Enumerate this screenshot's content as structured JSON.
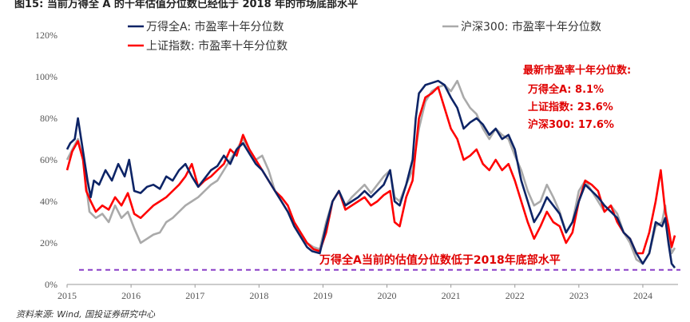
{
  "header": {
    "title": "图15: 当前万得全 A 的十年估值分位数已经低于 2018 年的市场底部水平"
  },
  "footer": {
    "source": "资料来源: Wind, 国投证券研究中心"
  },
  "colors": {
    "wind_a": "#0d2466",
    "hs300": "#aaaaaa",
    "sse": "#ff0000",
    "baseline": "#8a3fc7",
    "annotation": "#e00000"
  },
  "annotation": {
    "heading": "最新市盈率十年分位数:",
    "lines": [
      "万得全A: 8.1%",
      "上证指数: 23.6%",
      "沪深300: 17.6%"
    ]
  },
  "baseline_label": "万得全A当前的估值分位数低于2018年底部水平",
  "chart_data": {
    "type": "line",
    "title": "",
    "xlabel": "",
    "ylabel": "",
    "x_ticks": [
      "2015",
      "2016",
      "2017",
      "2018",
      "2019",
      "2020",
      "2021",
      "2022",
      "2023",
      "2024"
    ],
    "y_ticks": [
      "0%",
      "20%",
      "40%",
      "60%",
      "80%",
      "100%",
      "120%"
    ],
    "xlim": [
      2015.0,
      2024.55
    ],
    "ylim": [
      0,
      120
    ],
    "grid": false,
    "legend_position": "top",
    "baseline_value": 7,
    "series": [
      {
        "name": "万得全A: 市盈率十年分位数",
        "color": "#0d2466",
        "points": [
          [
            2015.0,
            65
          ],
          [
            2015.05,
            68
          ],
          [
            2015.12,
            70
          ],
          [
            2015.17,
            80
          ],
          [
            2015.22,
            70
          ],
          [
            2015.27,
            60
          ],
          [
            2015.32,
            50
          ],
          [
            2015.37,
            42
          ],
          [
            2015.42,
            50
          ],
          [
            2015.5,
            48
          ],
          [
            2015.6,
            55
          ],
          [
            2015.7,
            50
          ],
          [
            2015.8,
            58
          ],
          [
            2015.9,
            52
          ],
          [
            2015.97,
            60
          ],
          [
            2016.05,
            45
          ],
          [
            2016.15,
            44
          ],
          [
            2016.25,
            47
          ],
          [
            2016.35,
            48
          ],
          [
            2016.45,
            46
          ],
          [
            2016.55,
            52
          ],
          [
            2016.65,
            50
          ],
          [
            2016.75,
            55
          ],
          [
            2016.85,
            58
          ],
          [
            2016.95,
            52
          ],
          [
            2017.05,
            47
          ],
          [
            2017.15,
            51
          ],
          [
            2017.25,
            55
          ],
          [
            2017.35,
            57
          ],
          [
            2017.45,
            62
          ],
          [
            2017.55,
            58
          ],
          [
            2017.65,
            65
          ],
          [
            2017.75,
            68
          ],
          [
            2017.85,
            63
          ],
          [
            2017.95,
            58
          ],
          [
            2018.05,
            55
          ],
          [
            2018.15,
            50
          ],
          [
            2018.25,
            45
          ],
          [
            2018.35,
            40
          ],
          [
            2018.45,
            35
          ],
          [
            2018.55,
            28
          ],
          [
            2018.65,
            23
          ],
          [
            2018.75,
            18
          ],
          [
            2018.83,
            16
          ],
          [
            2018.95,
            15
          ],
          [
            2019.05,
            28
          ],
          [
            2019.15,
            40
          ],
          [
            2019.25,
            45
          ],
          [
            2019.35,
            38
          ],
          [
            2019.45,
            40
          ],
          [
            2019.55,
            42
          ],
          [
            2019.65,
            45
          ],
          [
            2019.75,
            42
          ],
          [
            2019.85,
            45
          ],
          [
            2019.95,
            48
          ],
          [
            2020.05,
            55
          ],
          [
            2020.12,
            40
          ],
          [
            2020.2,
            38
          ],
          [
            2020.3,
            48
          ],
          [
            2020.4,
            60
          ],
          [
            2020.45,
            80
          ],
          [
            2020.5,
            92
          ],
          [
            2020.6,
            96
          ],
          [
            2020.7,
            97
          ],
          [
            2020.8,
            98
          ],
          [
            2020.9,
            96
          ],
          [
            2021.0,
            90
          ],
          [
            2021.1,
            85
          ],
          [
            2021.2,
            75
          ],
          [
            2021.3,
            78
          ],
          [
            2021.4,
            80
          ],
          [
            2021.5,
            77
          ],
          [
            2021.6,
            72
          ],
          [
            2021.7,
            75
          ],
          [
            2021.8,
            70
          ],
          [
            2021.9,
            72
          ],
          [
            2022.0,
            65
          ],
          [
            2022.1,
            50
          ],
          [
            2022.2,
            40
          ],
          [
            2022.3,
            30
          ],
          [
            2022.4,
            35
          ],
          [
            2022.5,
            42
          ],
          [
            2022.6,
            38
          ],
          [
            2022.7,
            34
          ],
          [
            2022.8,
            25
          ],
          [
            2022.9,
            30
          ],
          [
            2023.0,
            40
          ],
          [
            2023.1,
            48
          ],
          [
            2023.2,
            45
          ],
          [
            2023.3,
            42
          ],
          [
            2023.4,
            38
          ],
          [
            2023.5,
            35
          ],
          [
            2023.6,
            32
          ],
          [
            2023.7,
            25
          ],
          [
            2023.8,
            22
          ],
          [
            2023.9,
            15
          ],
          [
            2024.0,
            10
          ],
          [
            2024.1,
            15
          ],
          [
            2024.2,
            30
          ],
          [
            2024.3,
            28
          ],
          [
            2024.35,
            32
          ],
          [
            2024.4,
            20
          ],
          [
            2024.45,
            10
          ],
          [
            2024.5,
            8
          ]
        ]
      },
      {
        "name": "沪深300: 市盈率十年分位数",
        "color": "#aaaaaa",
        "points": [
          [
            2015.0,
            60
          ],
          [
            2015.1,
            66
          ],
          [
            2015.17,
            70
          ],
          [
            2015.25,
            60
          ],
          [
            2015.35,
            35
          ],
          [
            2015.45,
            32
          ],
          [
            2015.55,
            34
          ],
          [
            2015.65,
            30
          ],
          [
            2015.75,
            38
          ],
          [
            2015.85,
            32
          ],
          [
            2015.95,
            35
          ],
          [
            2016.05,
            27
          ],
          [
            2016.15,
            20
          ],
          [
            2016.25,
            22
          ],
          [
            2016.35,
            24
          ],
          [
            2016.45,
            25
          ],
          [
            2016.55,
            30
          ],
          [
            2016.65,
            32
          ],
          [
            2016.75,
            35
          ],
          [
            2016.85,
            38
          ],
          [
            2016.95,
            40
          ],
          [
            2017.05,
            42
          ],
          [
            2017.15,
            45
          ],
          [
            2017.25,
            48
          ],
          [
            2017.35,
            50
          ],
          [
            2017.45,
            55
          ],
          [
            2017.55,
            60
          ],
          [
            2017.65,
            65
          ],
          [
            2017.75,
            70
          ],
          [
            2017.85,
            65
          ],
          [
            2017.95,
            60
          ],
          [
            2018.05,
            62
          ],
          [
            2018.15,
            55
          ],
          [
            2018.25,
            45
          ],
          [
            2018.35,
            40
          ],
          [
            2018.45,
            35
          ],
          [
            2018.55,
            30
          ],
          [
            2018.65,
            25
          ],
          [
            2018.75,
            20
          ],
          [
            2018.85,
            18
          ],
          [
            2018.95,
            17
          ],
          [
            2019.05,
            30
          ],
          [
            2019.15,
            40
          ],
          [
            2019.25,
            45
          ],
          [
            2019.35,
            38
          ],
          [
            2019.45,
            42
          ],
          [
            2019.55,
            45
          ],
          [
            2019.65,
            48
          ],
          [
            2019.75,
            44
          ],
          [
            2019.85,
            48
          ],
          [
            2019.95,
            52
          ],
          [
            2020.05,
            55
          ],
          [
            2020.12,
            42
          ],
          [
            2020.2,
            40
          ],
          [
            2020.3,
            48
          ],
          [
            2020.4,
            55
          ],
          [
            2020.5,
            75
          ],
          [
            2020.6,
            88
          ],
          [
            2020.7,
            93
          ],
          [
            2020.8,
            95
          ],
          [
            2020.9,
            96
          ],
          [
            2021.0,
            93
          ],
          [
            2021.1,
            98
          ],
          [
            2021.2,
            90
          ],
          [
            2021.3,
            85
          ],
          [
            2021.4,
            82
          ],
          [
            2021.5,
            75
          ],
          [
            2021.6,
            70
          ],
          [
            2021.7,
            75
          ],
          [
            2021.8,
            72
          ],
          [
            2021.9,
            70
          ],
          [
            2022.0,
            62
          ],
          [
            2022.1,
            55
          ],
          [
            2022.2,
            45
          ],
          [
            2022.3,
            38
          ],
          [
            2022.4,
            40
          ],
          [
            2022.5,
            48
          ],
          [
            2022.6,
            42
          ],
          [
            2022.7,
            35
          ],
          [
            2022.8,
            25
          ],
          [
            2022.9,
            30
          ],
          [
            2023.0,
            45
          ],
          [
            2023.1,
            50
          ],
          [
            2023.2,
            45
          ],
          [
            2023.3,
            40
          ],
          [
            2023.4,
            35
          ],
          [
            2023.5,
            38
          ],
          [
            2023.6,
            34
          ],
          [
            2023.7,
            25
          ],
          [
            2023.8,
            20
          ],
          [
            2023.9,
            12
          ],
          [
            2024.0,
            10
          ],
          [
            2024.1,
            15
          ],
          [
            2024.2,
            28
          ],
          [
            2024.3,
            30
          ],
          [
            2024.35,
            38
          ],
          [
            2024.4,
            25
          ],
          [
            2024.45,
            15
          ],
          [
            2024.5,
            17.6
          ]
        ]
      },
      {
        "name": "上证指数: 市盈率十年分位数",
        "color": "#ff0000",
        "points": [
          [
            2015.0,
            55
          ],
          [
            2015.08,
            64
          ],
          [
            2015.17,
            69
          ],
          [
            2015.25,
            60
          ],
          [
            2015.3,
            45
          ],
          [
            2015.37,
            40
          ],
          [
            2015.45,
            35
          ],
          [
            2015.55,
            38
          ],
          [
            2015.65,
            36
          ],
          [
            2015.75,
            42
          ],
          [
            2015.85,
            38
          ],
          [
            2015.95,
            44
          ],
          [
            2016.05,
            34
          ],
          [
            2016.15,
            32
          ],
          [
            2016.25,
            35
          ],
          [
            2016.35,
            38
          ],
          [
            2016.45,
            40
          ],
          [
            2016.55,
            42
          ],
          [
            2016.65,
            45
          ],
          [
            2016.75,
            48
          ],
          [
            2016.85,
            52
          ],
          [
            2016.95,
            58
          ],
          [
            2017.05,
            47
          ],
          [
            2017.15,
            50
          ],
          [
            2017.25,
            52
          ],
          [
            2017.35,
            55
          ],
          [
            2017.45,
            58
          ],
          [
            2017.55,
            65
          ],
          [
            2017.65,
            62
          ],
          [
            2017.75,
            72
          ],
          [
            2017.85,
            65
          ],
          [
            2017.95,
            60
          ],
          [
            2018.05,
            55
          ],
          [
            2018.15,
            50
          ],
          [
            2018.25,
            45
          ],
          [
            2018.35,
            42
          ],
          [
            2018.45,
            38
          ],
          [
            2018.55,
            30
          ],
          [
            2018.65,
            25
          ],
          [
            2018.75,
            20
          ],
          [
            2018.85,
            17
          ],
          [
            2018.95,
            16
          ],
          [
            2019.05,
            25
          ],
          [
            2019.15,
            40
          ],
          [
            2019.25,
            45
          ],
          [
            2019.35,
            36
          ],
          [
            2019.45,
            38
          ],
          [
            2019.55,
            40
          ],
          [
            2019.65,
            42
          ],
          [
            2019.75,
            38
          ],
          [
            2019.85,
            40
          ],
          [
            2019.95,
            43
          ],
          [
            2020.05,
            45
          ],
          [
            2020.12,
            30
          ],
          [
            2020.2,
            28
          ],
          [
            2020.3,
            42
          ],
          [
            2020.4,
            50
          ],
          [
            2020.5,
            80
          ],
          [
            2020.6,
            90
          ],
          [
            2020.7,
            92
          ],
          [
            2020.8,
            95
          ],
          [
            2020.9,
            85
          ],
          [
            2021.0,
            75
          ],
          [
            2021.1,
            70
          ],
          [
            2021.2,
            60
          ],
          [
            2021.3,
            62
          ],
          [
            2021.4,
            65
          ],
          [
            2021.5,
            58
          ],
          [
            2021.6,
            55
          ],
          [
            2021.7,
            60
          ],
          [
            2021.8,
            55
          ],
          [
            2021.9,
            58
          ],
          [
            2022.0,
            50
          ],
          [
            2022.1,
            40
          ],
          [
            2022.2,
            30
          ],
          [
            2022.3,
            22
          ],
          [
            2022.4,
            28
          ],
          [
            2022.5,
            35
          ],
          [
            2022.6,
            30
          ],
          [
            2022.7,
            28
          ],
          [
            2022.8,
            20
          ],
          [
            2022.9,
            25
          ],
          [
            2023.0,
            40
          ],
          [
            2023.1,
            50
          ],
          [
            2023.2,
            48
          ],
          [
            2023.3,
            45
          ],
          [
            2023.4,
            35
          ],
          [
            2023.5,
            38
          ],
          [
            2023.6,
            30
          ],
          [
            2023.7,
            25
          ],
          [
            2023.8,
            22
          ],
          [
            2023.9,
            15
          ],
          [
            2024.0,
            15
          ],
          [
            2024.1,
            25
          ],
          [
            2024.2,
            40
          ],
          [
            2024.28,
            55
          ],
          [
            2024.35,
            35
          ],
          [
            2024.4,
            28
          ],
          [
            2024.45,
            18
          ],
          [
            2024.5,
            23.6
          ]
        ]
      }
    ]
  }
}
